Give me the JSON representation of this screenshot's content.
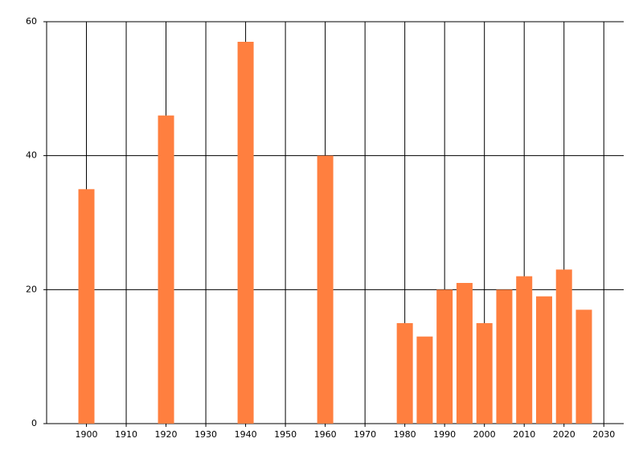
{
  "chart_data": {
    "type": "bar",
    "x": [
      1900,
      1920,
      1940,
      1960,
      1980,
      1985,
      1990,
      1995,
      2000,
      2005,
      2010,
      2015,
      2020,
      2025
    ],
    "values": [
      35,
      46,
      57,
      40,
      15,
      13,
      20,
      21,
      15,
      20,
      22,
      19,
      23,
      17
    ],
    "color": "#ff7f3f",
    "xlim": [
      1890,
      2035
    ],
    "xticks": [
      1900,
      1910,
      1920,
      1930,
      1940,
      1950,
      1960,
      1970,
      1980,
      1990,
      2000,
      2010,
      2020,
      2030
    ],
    "ylim": [
      0,
      60
    ],
    "yticks": [
      0,
      20,
      40,
      60
    ],
    "grid": true
  }
}
